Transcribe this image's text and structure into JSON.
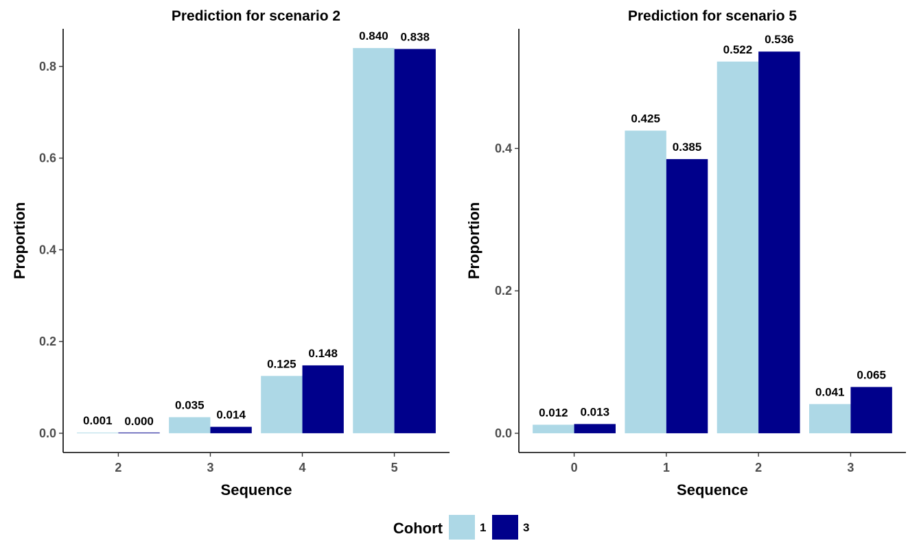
{
  "chart_data": [
    {
      "type": "bar",
      "title": "Prediction for scenario 2",
      "xlabel": "Sequence",
      "ylabel": "Proportion",
      "categories": [
        "2",
        "3",
        "4",
        "5"
      ],
      "series": [
        {
          "name": "1",
          "values": [
            0.001,
            0.035,
            0.125,
            0.84
          ],
          "labels": [
            "0.001",
            "0.035",
            "0.125",
            "0.840"
          ]
        },
        {
          "name": "3",
          "values": [
            0.0,
            0.014,
            0.148,
            0.838
          ],
          "labels": [
            "0.000",
            "0.014",
            "0.148",
            "0.838"
          ]
        }
      ],
      "yticks": [
        0.0,
        0.2,
        0.4,
        0.6,
        0.8
      ],
      "ytick_labels": [
        "0.0",
        "0.2",
        "0.4",
        "0.6",
        "0.8"
      ],
      "ylim": [
        -0.042,
        0.882
      ],
      "grid": false
    },
    {
      "type": "bar",
      "title": "Prediction for scenario 5",
      "xlabel": "Sequence",
      "ylabel": "Proportion",
      "categories": [
        "0",
        "1",
        "2",
        "3"
      ],
      "series": [
        {
          "name": "1",
          "values": [
            0.012,
            0.425,
            0.522,
            0.041
          ],
          "labels": [
            "0.012",
            "0.425",
            "0.522",
            "0.041"
          ]
        },
        {
          "name": "3",
          "values": [
            0.013,
            0.385,
            0.536,
            0.065
          ],
          "labels": [
            "0.013",
            "0.385",
            "0.536",
            "0.065"
          ]
        }
      ],
      "yticks": [
        0.0,
        0.2,
        0.4
      ],
      "ytick_labels": [
        "0.0",
        "0.2",
        "0.4"
      ],
      "ylim": [
        -0.027,
        0.568
      ],
      "grid": false
    }
  ],
  "legend": {
    "title": "Cohort",
    "position": "bottom",
    "items": [
      {
        "label": "1",
        "color": "#ADD8E6"
      },
      {
        "label": "3",
        "color": "#00008B"
      }
    ]
  }
}
